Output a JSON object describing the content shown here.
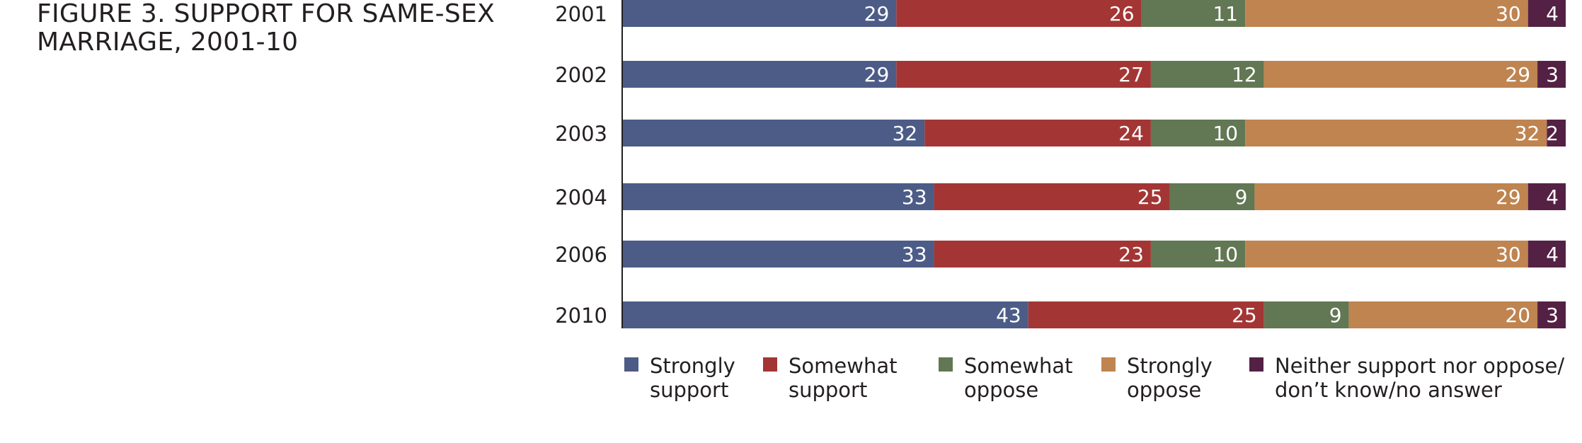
{
  "figure": {
    "title_line1": "FIGURE 3. SUPPORT FOR SAME-SEX",
    "title_line2": "MARRIAGE, 2001-10"
  },
  "chart_data": {
    "type": "bar",
    "orientation": "horizontal",
    "stacked": true,
    "title": "FIGURE 3. SUPPORT FOR SAME-SEX MARRIAGE, 2001-10",
    "categories": [
      "2001",
      "2002",
      "2003",
      "2004",
      "2006",
      "2010"
    ],
    "series": [
      {
        "name": "Strongly support",
        "color": "#4c5c87",
        "values": [
          29,
          29,
          32,
          33,
          33,
          43
        ]
      },
      {
        "name": "Somewhat support",
        "color": "#a33634",
        "values": [
          26,
          27,
          24,
          25,
          23,
          25
        ]
      },
      {
        "name": "Somewhat oppose",
        "color": "#627753",
        "values": [
          11,
          12,
          10,
          9,
          10,
          9
        ]
      },
      {
        "name": "Strongly oppose",
        "color": "#bf8450",
        "values": [
          30,
          29,
          32,
          29,
          30,
          20
        ]
      },
      {
        "name": "Neither support nor oppose/ don’t know/no answer",
        "color": "#542145",
        "values": [
          4,
          3,
          2,
          4,
          4,
          3
        ]
      }
    ],
    "legend_lines": [
      [
        "Strongly",
        "support"
      ],
      [
        "Somewhat",
        "support"
      ],
      [
        "Somewhat",
        "oppose"
      ],
      [
        "Strongly",
        "oppose"
      ],
      [
        "Neither support nor oppose/",
        "don’t know/no answer"
      ]
    ],
    "xlim": [
      0,
      100
    ],
    "grid": false,
    "legend_position": "bottom"
  }
}
